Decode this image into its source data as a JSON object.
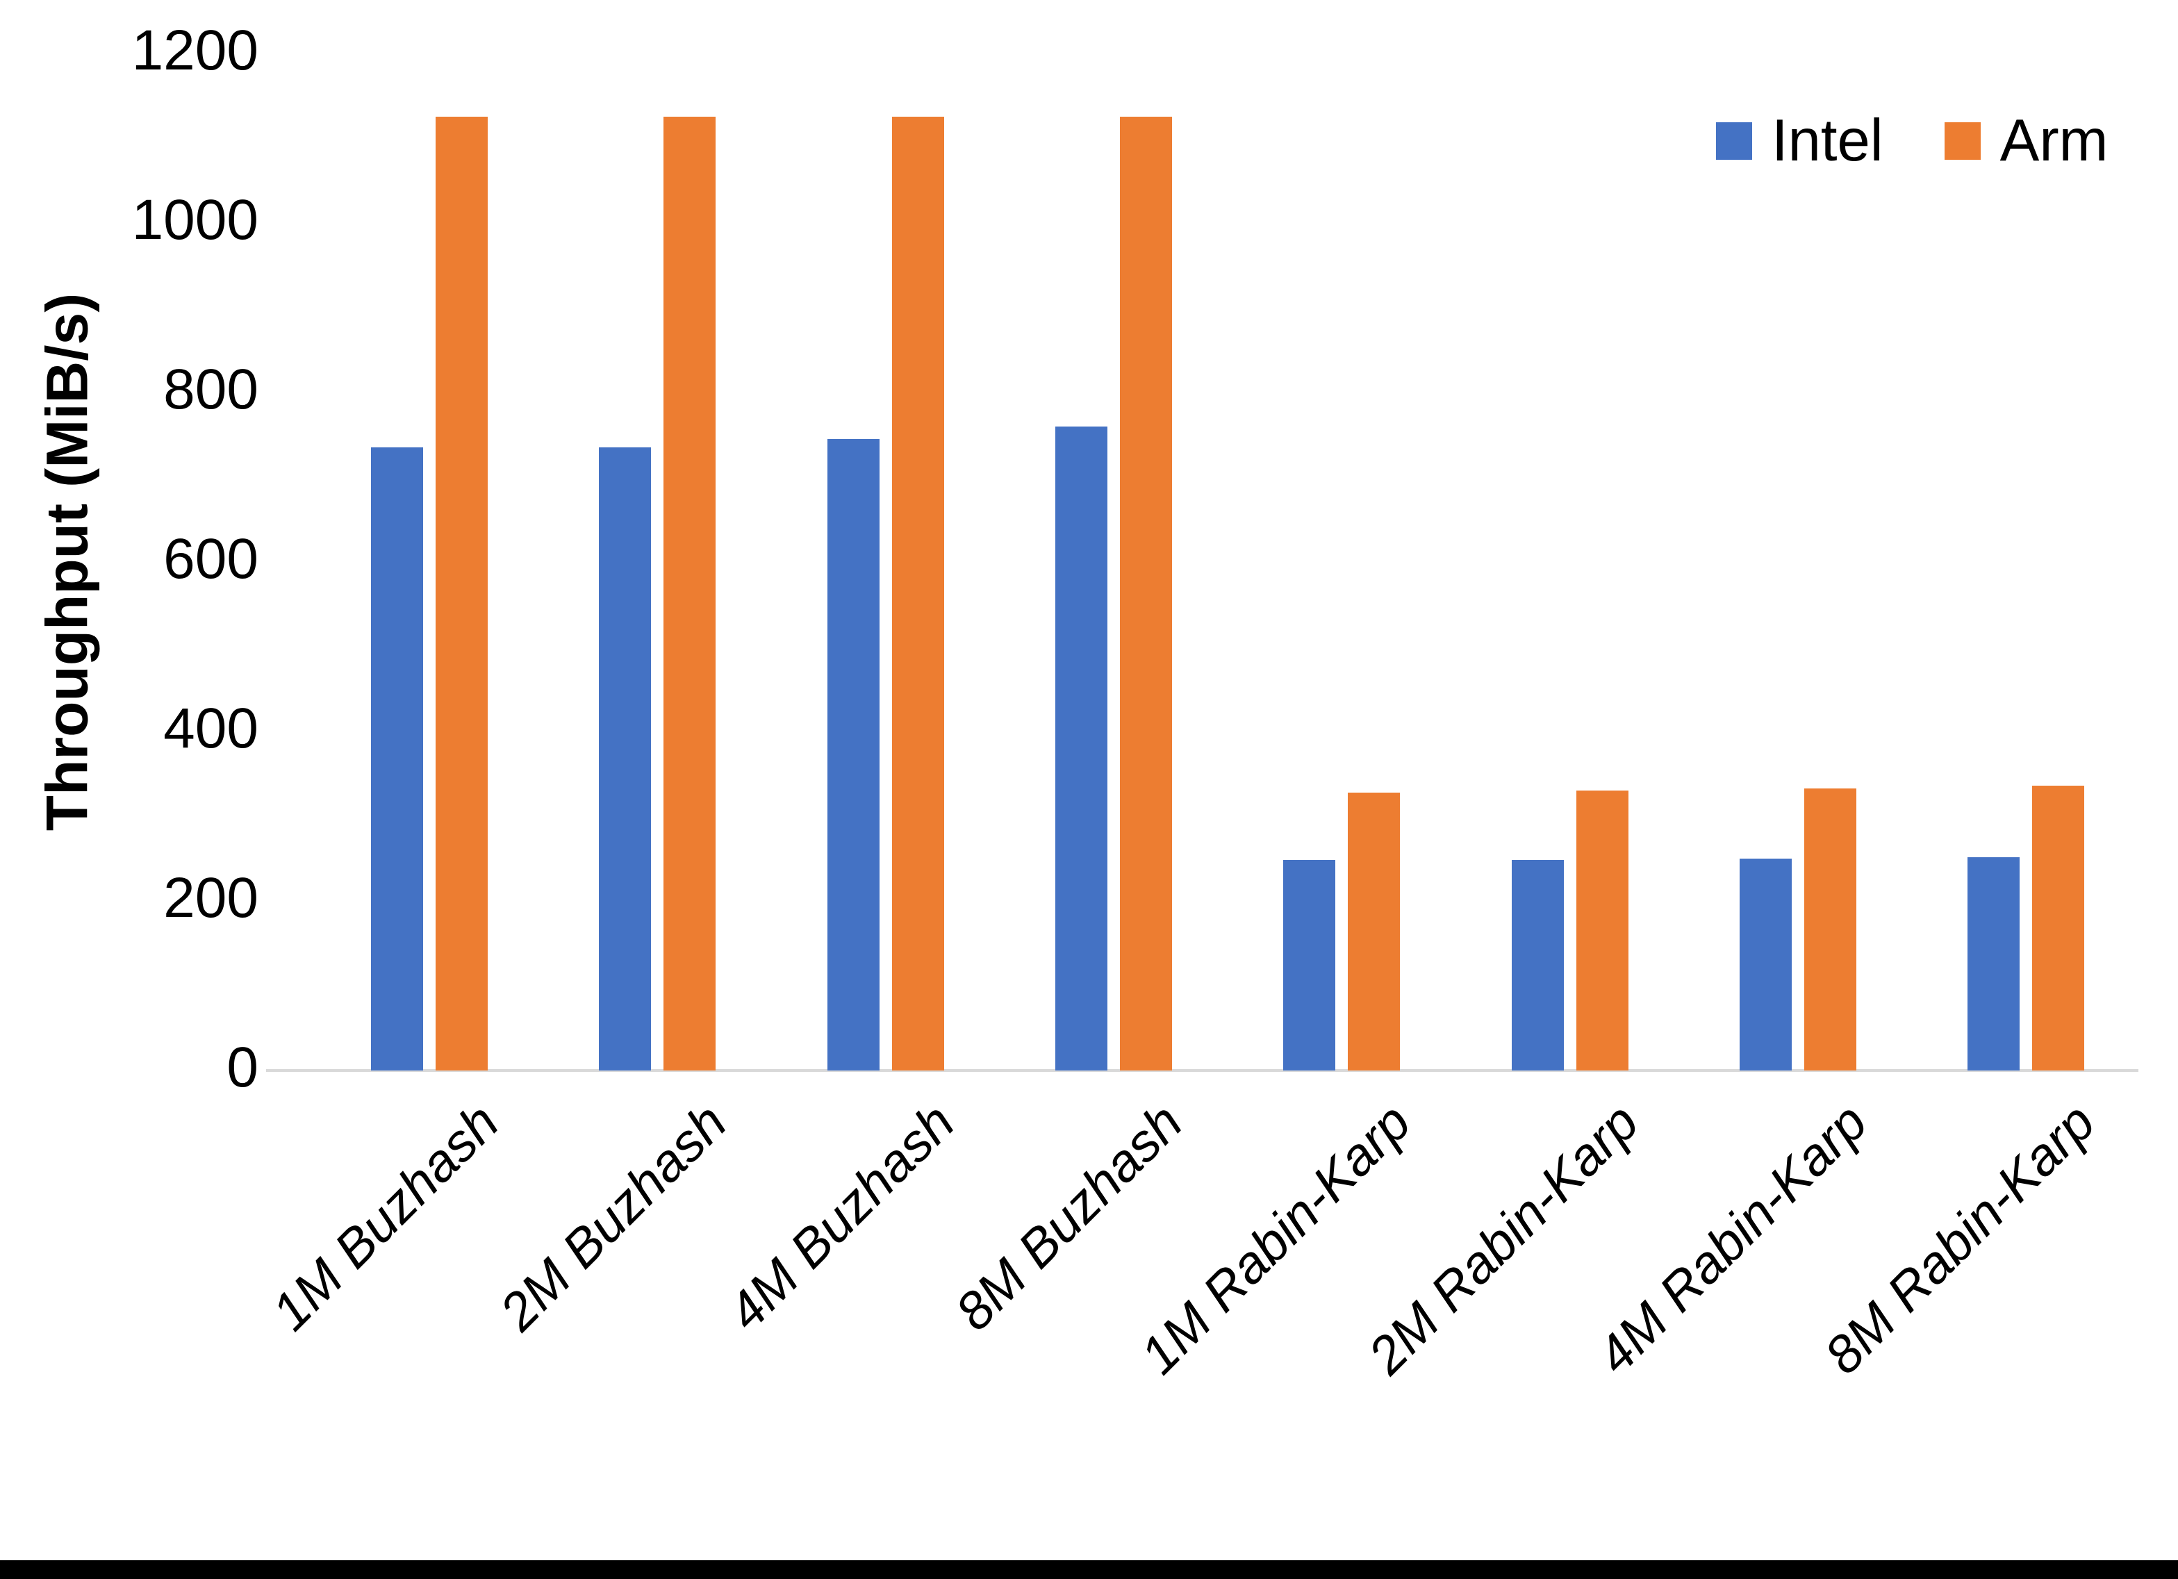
{
  "chart_data": {
    "type": "bar",
    "title": "",
    "xlabel": "",
    "ylabel": "Throughput (MiB/s)",
    "categories": [
      "1M Buzhash",
      "2M Buzhash",
      "4M Buzhash",
      "8M Buzhash",
      "1M Rabin-Karp",
      "2M Rabin-Karp",
      "4M Rabin-Karp",
      "8M Rabin-Karp"
    ],
    "series": [
      {
        "name": "Intel",
        "color": "#4472C4",
        "values": [
          735,
          735,
          745,
          760,
          248,
          248,
          250,
          252
        ]
      },
      {
        "name": "Arm",
        "color": "#ED7D31",
        "values": [
          1125,
          1125,
          1125,
          1125,
          328,
          330,
          333,
          336
        ]
      }
    ],
    "ylim": [
      0,
      1200
    ],
    "yticks": [
      0,
      200,
      400,
      600,
      800,
      1000,
      1200
    ],
    "grid": false,
    "legend_position": "top-right",
    "axis_line_color": "#D9D9D9"
  }
}
